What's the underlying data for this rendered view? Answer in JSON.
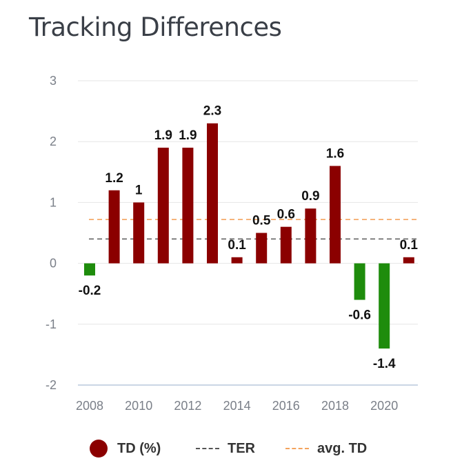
{
  "title": "Tracking Differences",
  "colors": {
    "positive": "#8b0000",
    "negative": "#1e8c0c",
    "ter": "#666666",
    "avg": "#f4a35d",
    "grid": "#e6e6e6",
    "axis": "#b8c7db"
  },
  "chart_data": {
    "type": "bar",
    "title": "Tracking Differences",
    "xlabel": "",
    "ylabel": "",
    "ylim": [
      -2,
      3
    ],
    "yticks": [
      3,
      2,
      1,
      0,
      -1,
      -2
    ],
    "x": [
      2008,
      2009,
      2010,
      2011,
      2012,
      2013,
      2014,
      2015,
      2016,
      2017,
      2018,
      2019,
      2020,
      2021
    ],
    "values": [
      -0.2,
      1.2,
      1.0,
      1.9,
      1.9,
      2.3,
      0.1,
      0.5,
      0.6,
      0.9,
      1.6,
      -0.6,
      -1.4,
      0.1
    ],
    "labels": [
      "-0.2",
      "1.2",
      "1",
      "1.9",
      "1.9",
      "2.3",
      "0.1",
      "0.5",
      "0.6",
      "0.9",
      "1.6",
      "-0.6",
      "-1.4",
      "0.1"
    ],
    "xticks": [
      "2008",
      "2010",
      "2012",
      "2014",
      "2016",
      "2018",
      "2020"
    ],
    "xtick_years": [
      2008,
      2010,
      2012,
      2014,
      2016,
      2018,
      2020
    ],
    "ter": 0.4,
    "avg_td": 0.72,
    "legend": [
      {
        "type": "dot",
        "label": "TD (%)"
      },
      {
        "type": "dash",
        "label": "TER"
      },
      {
        "type": "dash-orange",
        "label": "avg. TD"
      }
    ]
  }
}
